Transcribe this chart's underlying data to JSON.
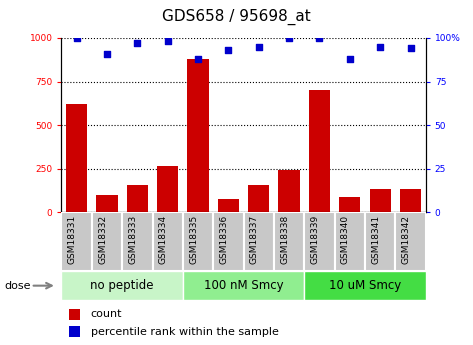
{
  "title": "GDS658 / 95698_at",
  "samples": [
    "GSM18331",
    "GSM18332",
    "GSM18333",
    "GSM18334",
    "GSM18335",
    "GSM18336",
    "GSM18337",
    "GSM18338",
    "GSM18339",
    "GSM18340",
    "GSM18341",
    "GSM18342"
  ],
  "counts": [
    620,
    100,
    155,
    265,
    880,
    75,
    155,
    240,
    700,
    85,
    135,
    135
  ],
  "percentiles": [
    100,
    91,
    97,
    98,
    88,
    93,
    95,
    100,
    100,
    88,
    95,
    94
  ],
  "groups": [
    {
      "label": "no peptide",
      "start": 0,
      "end": 4,
      "color": "#c8f5c8"
    },
    {
      "label": "100 nM Smcy",
      "start": 4,
      "end": 8,
      "color": "#90ee90"
    },
    {
      "label": "10 uM Smcy",
      "start": 8,
      "end": 12,
      "color": "#44dd44"
    }
  ],
  "bar_color": "#cc0000",
  "dot_color": "#0000cc",
  "ylim_left": [
    0,
    1000
  ],
  "ylim_right": [
    0,
    100
  ],
  "yticks_left": [
    0,
    250,
    500,
    750,
    1000
  ],
  "yticks_right": [
    0,
    25,
    50,
    75,
    100
  ],
  "bg_color": "#ffffff",
  "xtick_bg_color": "#c8c8c8",
  "xtick_border_color": "#ffffff",
  "dose_label": "dose",
  "legend_count": "count",
  "legend_percentile": "percentile rank within the sample",
  "title_fontsize": 11,
  "tick_fontsize": 6.5,
  "label_fontsize": 8,
  "group_label_fontsize": 8.5
}
